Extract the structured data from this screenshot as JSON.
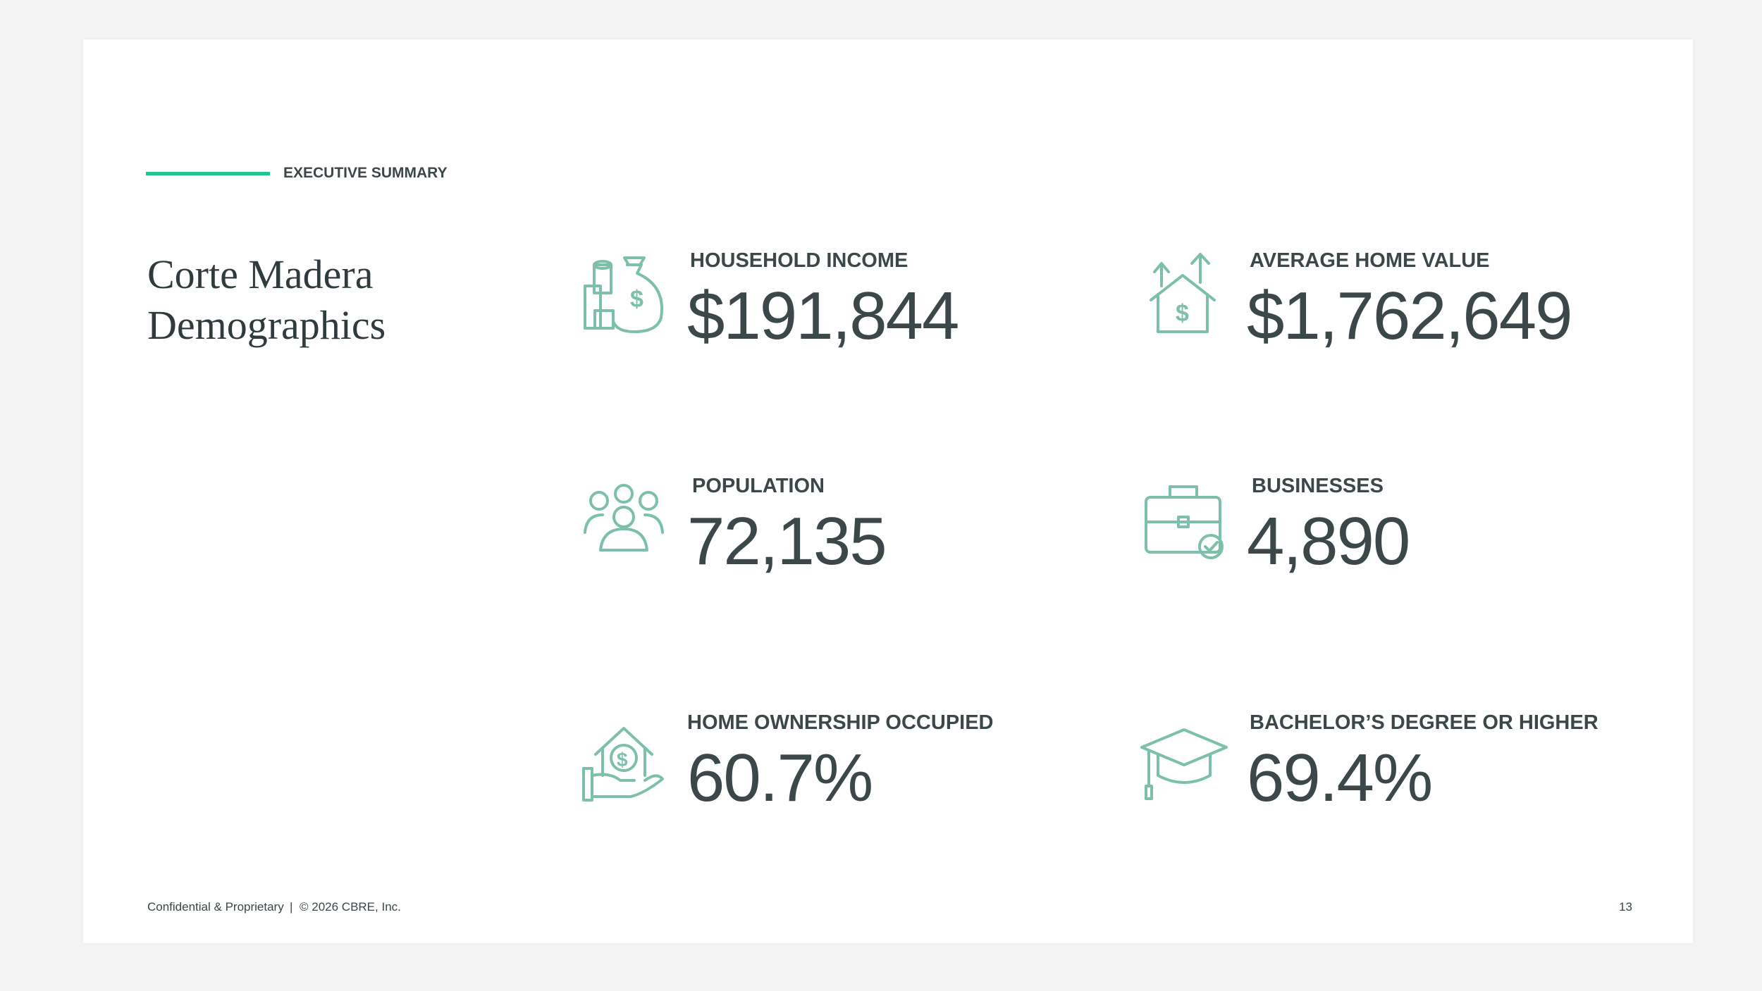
{
  "header": {
    "section": "EXECUTIVE SUMMARY",
    "title_lines": [
      "Corte Madera",
      "Demographics"
    ]
  },
  "stats": [
    {
      "label": "HOUSEHOLD INCOME",
      "value": "$191,844"
    },
    {
      "label": "AVERAGE HOME VALUE",
      "value": "$1,762,649"
    },
    {
      "label": "POPULATION",
      "value": "72,135"
    },
    {
      "label": "BUSINESSES",
      "value": "4,890"
    },
    {
      "label": "HOME OWNERSHIP OCCUPIED",
      "value": "60.7%"
    },
    {
      "label": "BACHELOR’S DEGREE OR HIGHER",
      "value": "69.4%"
    }
  ],
  "footer": {
    "confidential": "Confidential & Proprietary",
    "copyright": "© 2026 CBRE, Inc.",
    "page": "13"
  }
}
